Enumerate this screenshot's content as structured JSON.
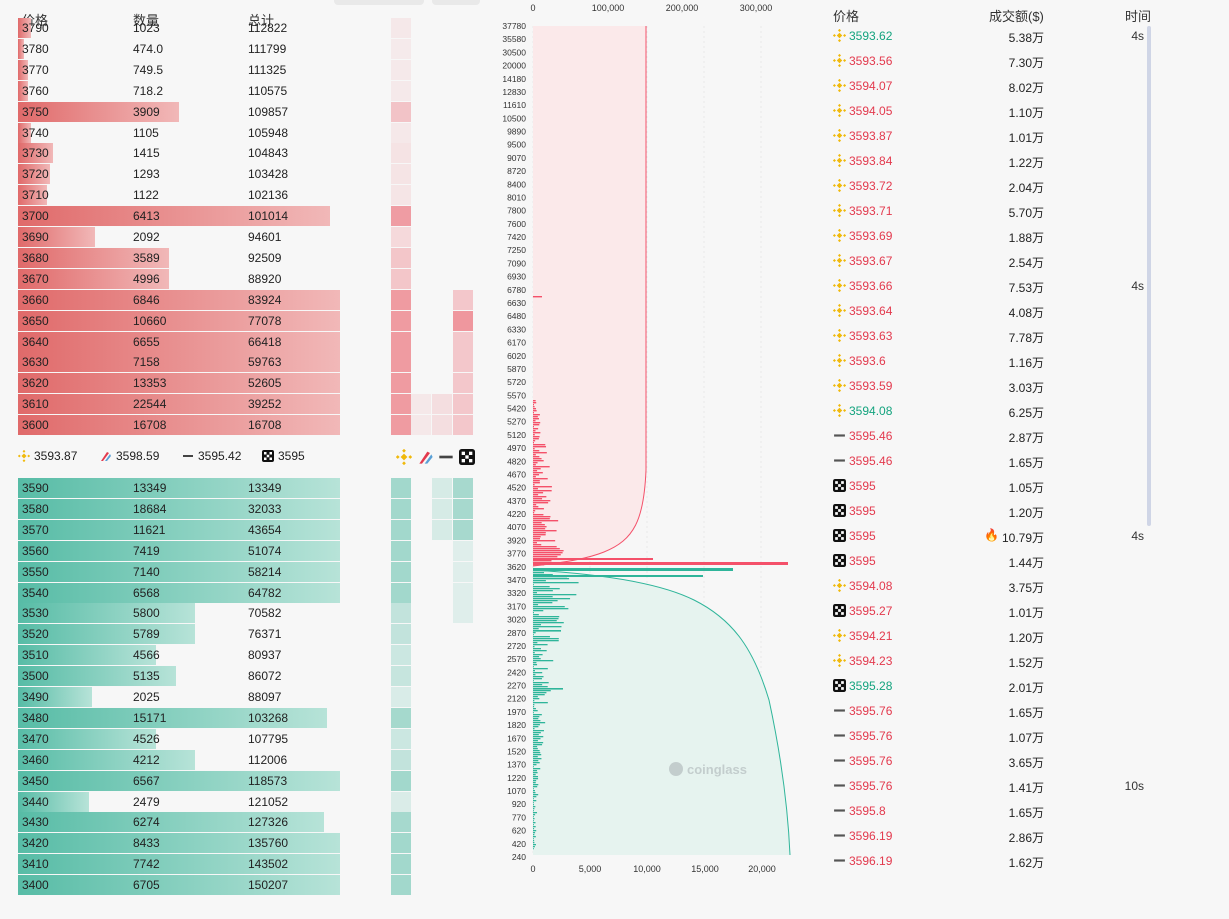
{
  "orderbook": {
    "headers": {
      "price": "价格",
      "qty": "数量",
      "total": "总计"
    },
    "asks": [
      {
        "price": "3790",
        "qty": "1023",
        "total": "112822",
        "fill": 0.04
      },
      {
        "price": "3780",
        "qty": "474.0",
        "total": "111799",
        "fill": 0.02
      },
      {
        "price": "3770",
        "qty": "749.5",
        "total": "111325",
        "fill": 0.03
      },
      {
        "price": "3760",
        "qty": "718.2",
        "total": "110575",
        "fill": 0.03
      },
      {
        "price": "3750",
        "qty": "3909",
        "total": "109857",
        "fill": 0.5
      },
      {
        "price": "3740",
        "qty": "1105",
        "total": "105948",
        "fill": 0.04
      },
      {
        "price": "3730",
        "qty": "1415",
        "total": "104843",
        "fill": 0.11
      },
      {
        "price": "3720",
        "qty": "1293",
        "total": "103428",
        "fill": 0.1
      },
      {
        "price": "3710",
        "qty": "1122",
        "total": "102136",
        "fill": 0.09
      },
      {
        "price": "3700",
        "qty": "6413",
        "total": "101014",
        "fill": 0.97
      },
      {
        "price": "3690",
        "qty": "2092",
        "total": "94601",
        "fill": 0.24
      },
      {
        "price": "3680",
        "qty": "3589",
        "total": "92509",
        "fill": 0.47
      },
      {
        "price": "3670",
        "qty": "4996",
        "total": "88920",
        "fill": 0.47
      },
      {
        "price": "3660",
        "qty": "6846",
        "total": "83924",
        "fill": 1.0
      },
      {
        "price": "3650",
        "qty": "10660",
        "total": "77078",
        "fill": 1.0
      },
      {
        "price": "3640",
        "qty": "6655",
        "total": "66418",
        "fill": 1.0
      },
      {
        "price": "3630",
        "qty": "7158",
        "total": "59763",
        "fill": 1.0
      },
      {
        "price": "3620",
        "qty": "13353",
        "total": "52605",
        "fill": 1.0
      },
      {
        "price": "3610",
        "qty": "22544",
        "total": "39252",
        "fill": 1.0
      },
      {
        "price": "3600",
        "qty": "16708",
        "total": "16708",
        "fill": 1.0
      }
    ],
    "bids": [
      {
        "price": "3590",
        "qty": "13349",
        "total": "13349",
        "fill": 1.0
      },
      {
        "price": "3580",
        "qty": "18684",
        "total": "32033",
        "fill": 1.0
      },
      {
        "price": "3570",
        "qty": "11621",
        "total": "43654",
        "fill": 1.0
      },
      {
        "price": "3560",
        "qty": "7419",
        "total": "51074",
        "fill": 1.0
      },
      {
        "price": "3550",
        "qty": "7140",
        "total": "58214",
        "fill": 1.0
      },
      {
        "price": "3540",
        "qty": "6568",
        "total": "64782",
        "fill": 1.0
      },
      {
        "price": "3530",
        "qty": "5800",
        "total": "70582",
        "fill": 0.55
      },
      {
        "price": "3520",
        "qty": "5789",
        "total": "76371",
        "fill": 0.55
      },
      {
        "price": "3510",
        "qty": "4566",
        "total": "80937",
        "fill": 0.43
      },
      {
        "price": "3500",
        "qty": "5135",
        "total": "86072",
        "fill": 0.49
      },
      {
        "price": "3490",
        "qty": "2025",
        "total": "88097",
        "fill": 0.23
      },
      {
        "price": "3480",
        "qty": "15171",
        "total": "103268",
        "fill": 0.96
      },
      {
        "price": "3470",
        "qty": "4526",
        "total": "107795",
        "fill": 0.43
      },
      {
        "price": "3460",
        "qty": "4212",
        "total": "112006",
        "fill": 0.55
      },
      {
        "price": "3450",
        "qty": "6567",
        "total": "118573",
        "fill": 1.0
      },
      {
        "price": "3440",
        "qty": "2479",
        "total": "121052",
        "fill": 0.22
      },
      {
        "price": "3430",
        "qty": "6274",
        "total": "127326",
        "fill": 0.95
      },
      {
        "price": "3420",
        "qty": "8433",
        "total": "135760",
        "fill": 1.0
      },
      {
        "price": "3410",
        "qty": "7742",
        "total": "143502",
        "fill": 1.0
      },
      {
        "price": "3400",
        "qty": "6705",
        "total": "150207",
        "fill": 1.0
      }
    ]
  },
  "exchange_prices": [
    {
      "exchange": "binance",
      "price": "3593.87",
      "icon": "binance-icon"
    },
    {
      "exchange": "bitfinex",
      "price": "3598.59",
      "icon": "bitfinex-icon"
    },
    {
      "exchange": "bybit",
      "price": "3595.42",
      "icon": "bybit-icon"
    },
    {
      "exchange": "okx",
      "price": "3595",
      "icon": "okx-icon"
    }
  ],
  "depth_chart": {
    "top_ticks": [
      "0",
      "100,000",
      "200,000",
      "300,000"
    ],
    "bottom_ticks": [
      "0",
      "5,000",
      "10,000",
      "15,000",
      "20,000"
    ],
    "y_ticks": [
      "37780",
      "35580",
      "30500",
      "20000",
      "14180",
      "12830",
      "11610",
      "10500",
      "9890",
      "9500",
      "9070",
      "8720",
      "8400",
      "8010",
      "7800",
      "7600",
      "7420",
      "7250",
      "7090",
      "6930",
      "6780",
      "6630",
      "6480",
      "6330",
      "6170",
      "6020",
      "5870",
      "5720",
      "5570",
      "5420",
      "5270",
      "5120",
      "4970",
      "4820",
      "4670",
      "4520",
      "4370",
      "4220",
      "4070",
      "3920",
      "3770",
      "3620",
      "3470",
      "3320",
      "3170",
      "3020",
      "2870",
      "2720",
      "2570",
      "2420",
      "2270",
      "2120",
      "1970",
      "1820",
      "1670",
      "1520",
      "1370",
      "1220",
      "1070",
      "920",
      "770",
      "620",
      "420",
      "240"
    ],
    "watermark": "coinglass",
    "colors": {
      "ask": "#f4516a",
      "bid": "#2fb59a",
      "ask_fill": "#fbe9ea",
      "bid_fill": "#e6f3ef"
    }
  },
  "trades": {
    "headers": {
      "price": "价格",
      "amount": "成交额($)",
      "time": "时间"
    },
    "rows": [
      {
        "ex": "binance",
        "price": "3593.62",
        "side": "buy",
        "amount": "5.38万",
        "time": "4s"
      },
      {
        "ex": "binance",
        "price": "3593.56",
        "side": "sell",
        "amount": "7.30万",
        "time": ""
      },
      {
        "ex": "binance",
        "price": "3594.07",
        "side": "sell",
        "amount": "8.02万",
        "time": ""
      },
      {
        "ex": "binance",
        "price": "3594.05",
        "side": "sell",
        "amount": "1.10万",
        "time": ""
      },
      {
        "ex": "binance",
        "price": "3593.87",
        "side": "sell",
        "amount": "1.01万",
        "time": ""
      },
      {
        "ex": "binance",
        "price": "3593.84",
        "side": "sell",
        "amount": "1.22万",
        "time": ""
      },
      {
        "ex": "binance",
        "price": "3593.72",
        "side": "sell",
        "amount": "2.04万",
        "time": ""
      },
      {
        "ex": "binance",
        "price": "3593.71",
        "side": "sell",
        "amount": "5.70万",
        "time": ""
      },
      {
        "ex": "binance",
        "price": "3593.69",
        "side": "sell",
        "amount": "1.88万",
        "time": ""
      },
      {
        "ex": "binance",
        "price": "3593.67",
        "side": "sell",
        "amount": "2.54万",
        "time": ""
      },
      {
        "ex": "binance",
        "price": "3593.66",
        "side": "sell",
        "amount": "7.53万",
        "time": "4s"
      },
      {
        "ex": "binance",
        "price": "3593.64",
        "side": "sell",
        "amount": "4.08万",
        "time": ""
      },
      {
        "ex": "binance",
        "price": "3593.63",
        "side": "sell",
        "amount": "7.78万",
        "time": ""
      },
      {
        "ex": "binance",
        "price": "3593.6",
        "side": "sell",
        "amount": "1.16万",
        "time": ""
      },
      {
        "ex": "binance",
        "price": "3593.59",
        "side": "sell",
        "amount": "3.03万",
        "time": ""
      },
      {
        "ex": "binance",
        "price": "3594.08",
        "side": "buy",
        "amount": "6.25万",
        "time": ""
      },
      {
        "ex": "bybit",
        "price": "3595.46",
        "side": "sell",
        "amount": "2.87万",
        "time": ""
      },
      {
        "ex": "bybit",
        "price": "3595.46",
        "side": "sell",
        "amount": "1.65万",
        "time": ""
      },
      {
        "ex": "okx",
        "price": "3595",
        "side": "sell",
        "amount": "1.05万",
        "time": ""
      },
      {
        "ex": "okx",
        "price": "3595",
        "side": "sell",
        "amount": "1.20万",
        "time": ""
      },
      {
        "ex": "okx",
        "price": "3595",
        "side": "sell",
        "amount": "10.79万",
        "time": "4s",
        "hot": true
      },
      {
        "ex": "okx",
        "price": "3595",
        "side": "sell",
        "amount": "1.44万",
        "time": ""
      },
      {
        "ex": "binance",
        "price": "3594.08",
        "side": "sell",
        "amount": "3.75万",
        "time": ""
      },
      {
        "ex": "okx",
        "price": "3595.27",
        "side": "sell",
        "amount": "1.01万",
        "time": ""
      },
      {
        "ex": "binance",
        "price": "3594.21",
        "side": "sell",
        "amount": "1.20万",
        "time": ""
      },
      {
        "ex": "binance",
        "price": "3594.23",
        "side": "sell",
        "amount": "1.52万",
        "time": ""
      },
      {
        "ex": "okx",
        "price": "3595.28",
        "side": "buy",
        "amount": "2.01万",
        "time": ""
      },
      {
        "ex": "bybit",
        "price": "3595.76",
        "side": "sell",
        "amount": "1.65万",
        "time": ""
      },
      {
        "ex": "bybit",
        "price": "3595.76",
        "side": "sell",
        "amount": "1.07万",
        "time": ""
      },
      {
        "ex": "bybit",
        "price": "3595.76",
        "side": "sell",
        "amount": "3.65万",
        "time": ""
      },
      {
        "ex": "bybit",
        "price": "3595.76",
        "side": "sell",
        "amount": "1.41万",
        "time": "10s"
      },
      {
        "ex": "bybit",
        "price": "3595.8",
        "side": "sell",
        "amount": "1.65万",
        "time": ""
      },
      {
        "ex": "bybit",
        "price": "3596.19",
        "side": "sell",
        "amount": "2.86万",
        "time": ""
      },
      {
        "ex": "bybit",
        "price": "3596.19",
        "side": "sell",
        "amount": "1.62万",
        "time": ""
      }
    ]
  },
  "colors": {
    "sell": "#e3394d",
    "buy": "#13a37e",
    "binance": "#f0b90b"
  }
}
